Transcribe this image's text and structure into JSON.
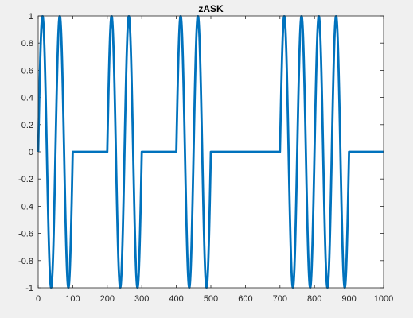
{
  "chart_data": {
    "type": "line",
    "title": "zASK",
    "xlabel": "",
    "ylabel": "",
    "xlim": [
      0,
      1000
    ],
    "ylim": [
      -1,
      1
    ],
    "x_ticks": [
      0,
      100,
      200,
      300,
      400,
      500,
      600,
      700,
      800,
      900,
      1000
    ],
    "y_ticks": [
      1,
      0.8,
      0.6,
      0.4,
      0.2,
      0,
      -0.2,
      -0.4,
      -0.6,
      -0.8,
      -1
    ],
    "x_tick_labels": [
      "0",
      "100",
      "200",
      "300",
      "400",
      "500",
      "600",
      "700",
      "800",
      "900",
      "1000"
    ],
    "y_tick_labels": [
      "1",
      "0.8",
      "0.6",
      "0.4",
      "0.2",
      "0",
      "-0.2",
      "-0.4",
      "-0.6",
      "-0.8",
      "-1"
    ],
    "grid": false,
    "series": [
      {
        "description": "ASK waveform: sine carrier with 2 cycles per 100-sample bit when bit=1, zero when bit=0",
        "bits": [
          1,
          0,
          1,
          0,
          1,
          0,
          0,
          1,
          1,
          0
        ],
        "bit_length": 100,
        "cycles_per_bit": 2,
        "amplitude": 1,
        "color": "#0072BD"
      }
    ],
    "colors": {
      "figure_background": "#f0f0f0",
      "axes_background": "#ffffff",
      "axes_color": "#262626",
      "line": "#0072BD"
    }
  }
}
